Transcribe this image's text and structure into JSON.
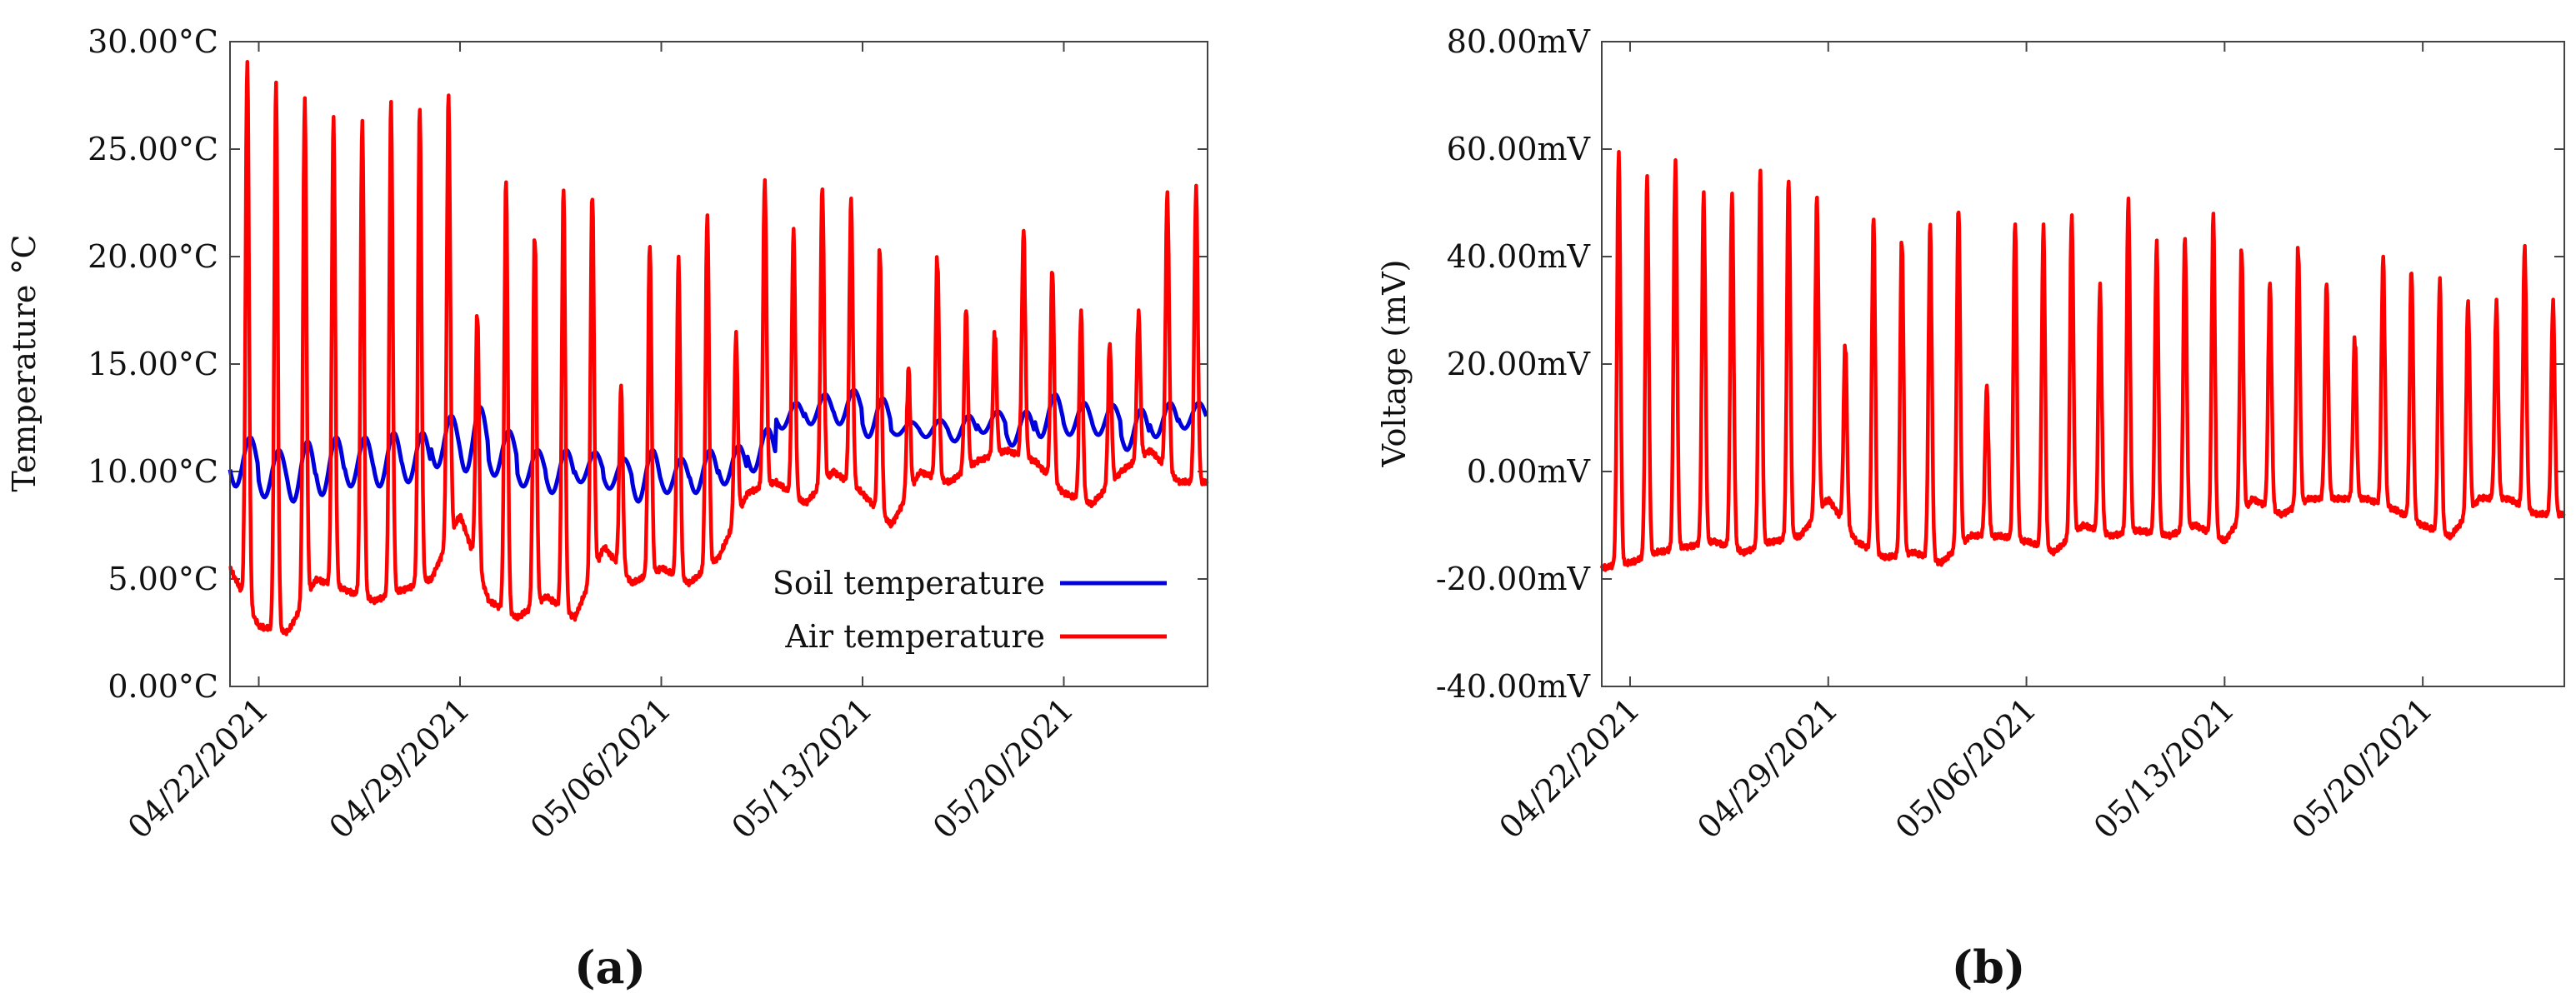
{
  "chart_data": [
    {
      "panel": "(a)",
      "type": "line",
      "ylabel": "Temperature °C",
      "xlabel": "",
      "ylim": [
        0,
        30
      ],
      "yticks": [
        0,
        5,
        10,
        15,
        20,
        25,
        30
      ],
      "ytick_labels": [
        "0.00°C",
        "5.00°C",
        "10.00°C",
        "15.00°C",
        "20.00°C",
        "25.00°C",
        "30.00°C"
      ],
      "xlim": [
        0,
        34
      ],
      "xticks": [
        1,
        8,
        15,
        22,
        29
      ],
      "xtick_labels": [
        "04/22/2021",
        "04/29/2021",
        "05/06/2021",
        "05/13/2021",
        "05/20/2021"
      ],
      "x_unit": "days since 04/21/2021 00:00",
      "legend_position": "bottom-right",
      "series": [
        {
          "name": "Soil temperature",
          "color": "#0000dd",
          "daily_min": [
            9.3,
            8.8,
            8.6,
            8.9,
            9.3,
            9.3,
            9.5,
            10.2,
            10.0,
            9.8,
            9.3,
            9.0,
            9.5,
            9.2,
            8.6,
            9.0,
            9.0,
            9.4,
            10.0,
            12.0,
            12.2,
            12.2,
            11.6,
            11.7,
            11.6,
            11.4,
            11.8,
            11.2,
            11.6,
            11.7,
            11.7,
            11.0,
            11.6,
            12.0
          ],
          "daily_max": [
            11.6,
            11.0,
            11.4,
            11.6,
            11.6,
            11.8,
            11.8,
            12.6,
            13.0,
            11.9,
            11.0,
            11.0,
            10.9,
            10.6,
            11.0,
            10.6,
            11.0,
            11.2,
            12.0,
            13.2,
            13.6,
            13.8,
            13.4,
            12.3,
            12.4,
            12.6,
            12.8,
            12.8,
            13.6,
            13.2,
            13.1,
            12.9,
            13.2,
            13.2
          ]
        },
        {
          "name": "Air temperature",
          "color": "#ff0000",
          "daily_min": [
            5.5,
            2.8,
            2.5,
            5.0,
            4.5,
            4.0,
            4.5,
            5.0,
            8.0,
            4.0,
            3.2,
            4.2,
            3.2,
            6.5,
            4.8,
            5.5,
            4.8,
            6.0,
            9.0,
            9.5,
            8.5,
            10.0,
            9.0,
            7.5,
            10.0,
            9.5,
            10.5,
            11.0,
            10.5,
            9.0,
            8.5,
            10.0,
            11.0,
            9.5
          ],
          "daily_max": [
            29.2,
            28.1,
            27.4,
            26.5,
            26.4,
            27.2,
            27.1,
            27.5,
            17.5,
            23.5,
            21.2,
            23.1,
            23.1,
            14.0,
            20.7,
            20.0,
            22.0,
            16.5,
            23.6,
            21.3,
            23.3,
            22.7,
            20.5,
            14.8,
            20.0,
            17.5,
            16.5,
            21.2,
            19.5,
            17.5,
            16.0,
            17.5,
            23.0,
            23.3
          ]
        }
      ]
    },
    {
      "panel": "(b)",
      "type": "line",
      "ylabel": "Voltage (mV)",
      "xlabel": "",
      "ylim": [
        -40,
        80
      ],
      "yticks": [
        -40,
        -20,
        0,
        20,
        40,
        60,
        80
      ],
      "ytick_labels": [
        "-40.00mV",
        "-20.00mV",
        "0.00mV",
        "20.00mV",
        "40.00mV",
        "60.00mV",
        "80.00mV"
      ],
      "xlim": [
        0,
        34
      ],
      "xticks": [
        1,
        8,
        15,
        22,
        29
      ],
      "xtick_labels": [
        "04/22/2021",
        "04/29/2021",
        "05/06/2021",
        "05/13/2021",
        "05/20/2021"
      ],
      "x_unit": "days since 04/21/2021 00:00",
      "series": [
        {
          "name": "Voltage",
          "color": "#ff0000",
          "daily_min": [
            -18,
            -17,
            -15,
            -14,
            -13,
            -15,
            -13,
            -12,
            -5,
            -13,
            -16,
            -15,
            -17,
            -12,
            -12,
            -13,
            -15,
            -10,
            -12,
            -11,
            -12,
            -10,
            -13,
            -5,
            -8,
            -5,
            -5,
            -5,
            -7,
            -10,
            -12,
            -5,
            -5,
            -8
          ],
          "daily_max": [
            60,
            55,
            58,
            52,
            52,
            56,
            55,
            51,
            24,
            47,
            44,
            46,
            50,
            16,
            47,
            46,
            48,
            35,
            51,
            43,
            44,
            48,
            42,
            35,
            42,
            35,
            25,
            40,
            38,
            36,
            32,
            32,
            42,
            32
          ]
        }
      ]
    }
  ],
  "panel_labels": [
    "(a)",
    "(b)"
  ]
}
